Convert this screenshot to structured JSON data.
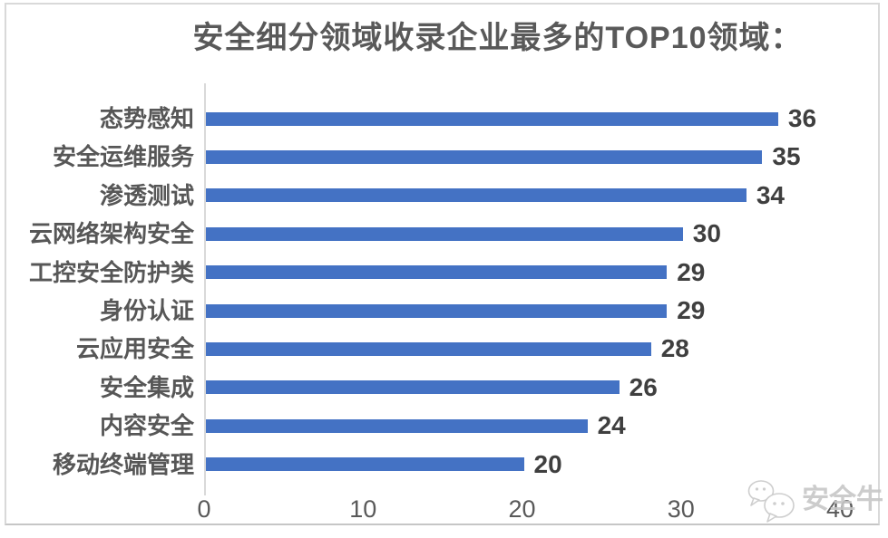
{
  "chart_data": {
    "type": "bar",
    "orientation": "horizontal",
    "title": "安全细分领域收录企业最多的TOP10领域：",
    "categories": [
      "态势感知",
      "安全运维服务",
      "渗透测试",
      "云网络架构安全",
      "工控安全防护类",
      "身份认证",
      "云应用安全",
      "安全集成",
      "内容安全",
      "移动终端管理"
    ],
    "values": [
      36,
      35,
      34,
      30,
      29,
      29,
      28,
      26,
      24,
      20
    ],
    "xlabel": "",
    "ylabel": "",
    "xlim": [
      0,
      40
    ],
    "x_ticks": [
      "0",
      "10",
      "20",
      "30",
      "40"
    ],
    "data_labels_shown": true,
    "gridlines": "none",
    "legend": "none",
    "bar_color": "#4472C4"
  },
  "watermark": {
    "label": "安全牛",
    "icon": "chat-bubbles-icon"
  },
  "colors": {
    "bar": "#4472C4",
    "title_text": "#595959",
    "category_text": "#575757",
    "value_text": "#3f3f3f",
    "tick_text": "#595959",
    "axis_line": "#d9d9d9",
    "frame_border": "#d9d9d9",
    "watermark_text": "#c7c7c7"
  }
}
